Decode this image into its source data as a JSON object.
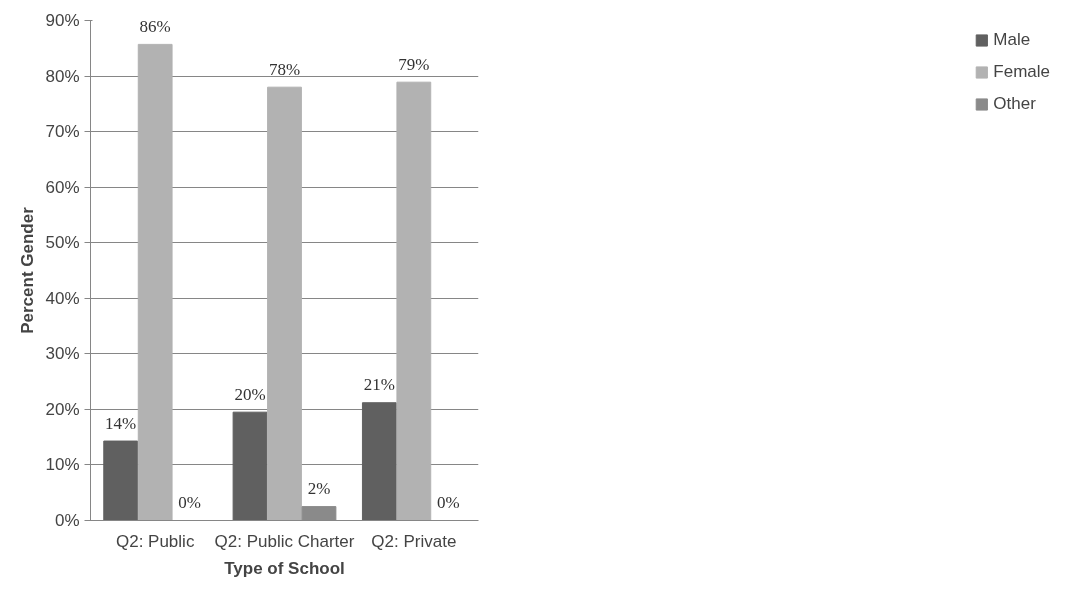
{
  "chart_data": {
    "type": "bar",
    "xlabel": "Type of School",
    "ylabel": "Percent Gender",
    "categories": [
      "Q2: Public",
      "Q2: Public Charter",
      "Q2: Private"
    ],
    "series": [
      {
        "name": "Male",
        "color": "#606060",
        "values": [
          14.3,
          19.5,
          21.2
        ],
        "value_labels": [
          "14%",
          "20%",
          "21%"
        ]
      },
      {
        "name": "Female",
        "color": "#b2b2b2",
        "values": [
          85.7,
          78,
          78.9
        ],
        "value_labels": [
          "86%",
          "78%",
          "79%"
        ]
      },
      {
        "name": "Other",
        "color": "#8a8a8a",
        "values": [
          0,
          2.5,
          0
        ],
        "value_labels": [
          "0%",
          "2%",
          "0%"
        ]
      }
    ],
    "ylim": [
      0,
      90
    ],
    "yticks": [
      {
        "value": 0,
        "label": "0%"
      },
      {
        "value": 10,
        "label": "10%"
      },
      {
        "value": 20,
        "label": "20%"
      },
      {
        "value": 30,
        "label": "30%"
      },
      {
        "value": 40,
        "label": "40%"
      },
      {
        "value": 50,
        "label": "50%"
      },
      {
        "value": 60,
        "label": "60%"
      },
      {
        "value": 70,
        "label": "70%"
      },
      {
        "value": 80,
        "label": "80%"
      },
      {
        "value": 90,
        "label": "90%"
      }
    ],
    "grid": "y",
    "legend": "right"
  }
}
